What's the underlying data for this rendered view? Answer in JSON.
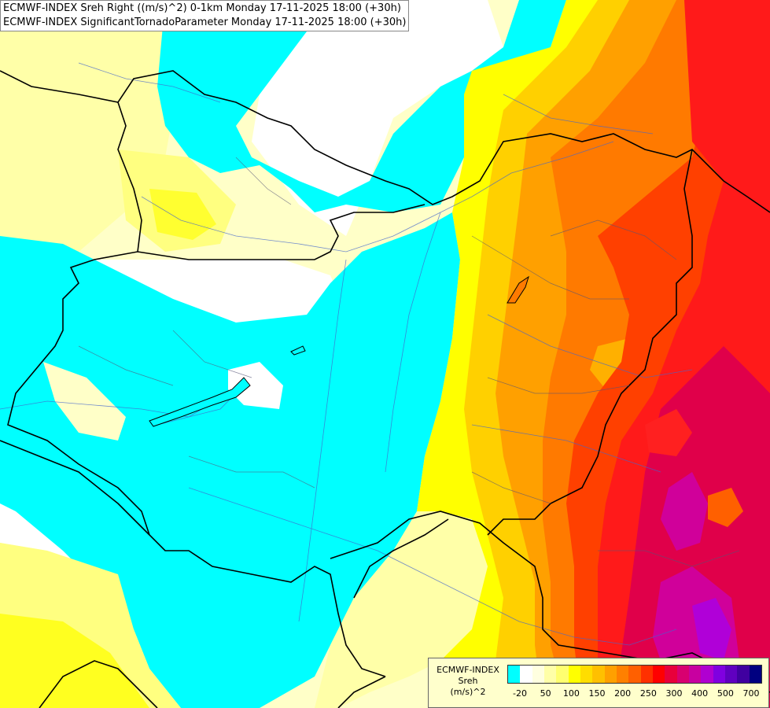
{
  "title": {
    "line1": "ECMWF-INDEX Sreh Right ((m/s)^2) 0-1km Monday 17-11-2025 18:00 (+30h)",
    "line2": "ECMWF-INDEX SignificantTornadoParameter Monday 17-11-2025 18:00 (+30h)"
  },
  "legend": {
    "line1": "ECMWF-INDEX",
    "line2": "Sreh",
    "line3": "(m/s)^2",
    "colors": [
      "#00ffff",
      "#ffffff",
      "#ffffe0",
      "#ffffa8",
      "#ffff70",
      "#ffff00",
      "#ffdd00",
      "#ffc000",
      "#ffa000",
      "#ff8000",
      "#ff6000",
      "#ff3000",
      "#ff0000",
      "#e8003a",
      "#d80070",
      "#c800a0",
      "#b000d0",
      "#8000e0",
      "#6000c0",
      "#4000a0",
      "#000080"
    ],
    "ticks": [
      "-20",
      "50",
      "100",
      "150",
      "200",
      "250",
      "300",
      "400",
      "500",
      "700"
    ]
  },
  "colors": {
    "cyan": "#00ffff",
    "white": "#ffffff",
    "pale_yellow": "#ffffc8",
    "light_yellow": "#ffff96",
    "yellow": "#ffff00",
    "gold": "#ffd700",
    "orange": "#ffa500",
    "dark_orange": "#ff7a00",
    "red_orange": "#ff4000",
    "red": "#ff1a1a",
    "crimson": "#e0004a",
    "magenta": "#d0009a",
    "purple": "#b000d8"
  }
}
